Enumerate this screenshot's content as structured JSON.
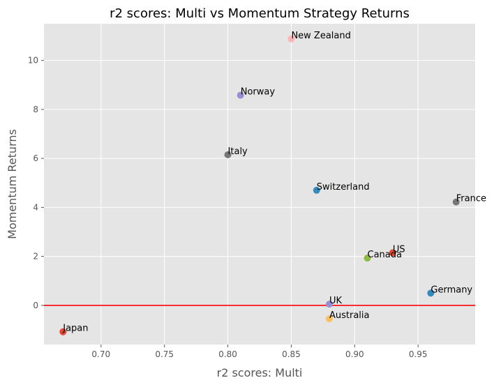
{
  "chart_data": {
    "type": "scatter",
    "title": "r2 scores: Multi vs Momentum Strategy Returns",
    "xlabel": "r2 scores: Multi",
    "ylabel": "Momentum Returns",
    "xlim": [
      0.655,
      0.995
    ],
    "ylim": [
      -1.6,
      11.5
    ],
    "xticks": [
      0.7,
      0.75,
      0.8,
      0.85,
      0.9,
      0.95
    ],
    "xtick_labels": [
      "0.70",
      "0.75",
      "0.80",
      "0.85",
      "0.90",
      "0.95"
    ],
    "yticks": [
      0,
      2,
      4,
      6,
      8,
      10
    ],
    "ytick_labels": [
      "0",
      "2",
      "4",
      "6",
      "8",
      "10"
    ],
    "grid": true,
    "background": "#e5e5e5",
    "reference_line": {
      "y": 0,
      "color": "#ff0000"
    },
    "points": [
      {
        "label": "New Zealand",
        "x": 0.85,
        "y": 10.88,
        "color": "#ffb5b8"
      },
      {
        "label": "Norway",
        "x": 0.81,
        "y": 8.58,
        "color": "#988ed5"
      },
      {
        "label": "Italy",
        "x": 0.8,
        "y": 6.15,
        "color": "#777777"
      },
      {
        "label": "Switzerland",
        "x": 0.87,
        "y": 4.7,
        "color": "#348abd"
      },
      {
        "label": "France",
        "x": 0.98,
        "y": 4.22,
        "color": "#777777"
      },
      {
        "label": "US",
        "x": 0.93,
        "y": 2.15,
        "color": "#e24a33"
      },
      {
        "label": "Canada",
        "x": 0.91,
        "y": 1.93,
        "color": "#8eba42"
      },
      {
        "label": "Germany",
        "x": 0.96,
        "y": 0.5,
        "color": "#348abd"
      },
      {
        "label": "UK",
        "x": 0.88,
        "y": 0.05,
        "color": "#988ed5"
      },
      {
        "label": "Australia",
        "x": 0.88,
        "y": -0.55,
        "color": "#fbc15e"
      },
      {
        "label": "Japan",
        "x": 0.67,
        "y": -1.08,
        "color": "#e24a33"
      }
    ]
  }
}
